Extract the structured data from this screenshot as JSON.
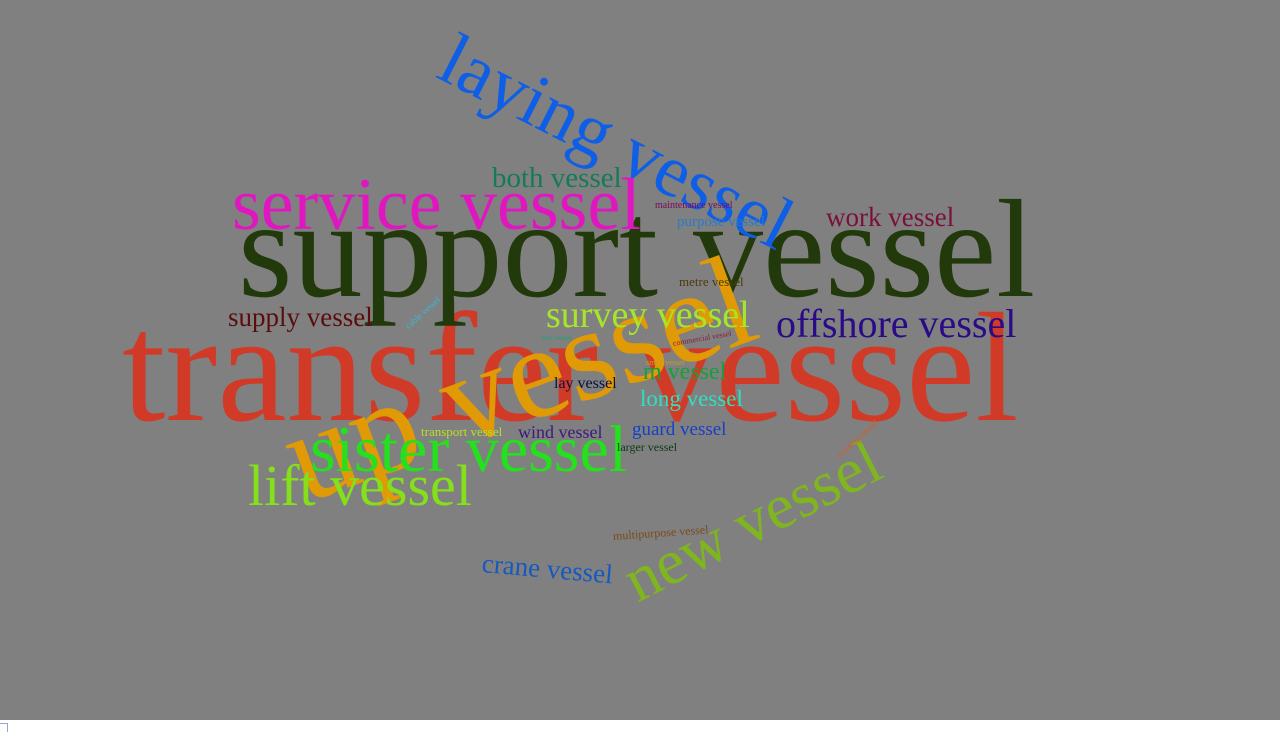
{
  "words": [
    {
      "text": "transfer vessel",
      "color": "#d13a26"
    },
    {
      "text": "support vessel",
      "color": "#223a0b"
    },
    {
      "text": "up vessel",
      "color": "#e09a06"
    },
    {
      "text": "service vessel",
      "color": "#e017c0"
    },
    {
      "text": "laying vessel",
      "color": "#0f5ee6"
    },
    {
      "text": "sister vessel",
      "color": "#25e01c"
    },
    {
      "text": "lift vessel",
      "color": "#83e01a"
    },
    {
      "text": "new vessel",
      "color": "#7fb51f"
    },
    {
      "text": "survey vessel",
      "color": "#a6e62a"
    },
    {
      "text": "offshore vessel",
      "color": "#2a0a86"
    },
    {
      "text": "both vessel",
      "color": "#147a5a"
    },
    {
      "text": "work vessel",
      "color": "#7a0f3a"
    },
    {
      "text": "supply vessel",
      "color": "#5a0d0d"
    },
    {
      "text": "crane vessel",
      "color": "#1559c0"
    },
    {
      "text": "m vessel",
      "color": "#16a03a"
    },
    {
      "text": "long vessel",
      "color": "#2fe0c0"
    },
    {
      "text": "guard vessel",
      "color": "#1440c8"
    },
    {
      "text": "lay vessel",
      "color": "#0a0f3c"
    },
    {
      "text": "wind vessel",
      "color": "#3a1a7a"
    },
    {
      "text": "transport vessel",
      "color": "#b8e02a"
    },
    {
      "text": "purpose vessel",
      "color": "#2a7ac8"
    },
    {
      "text": "metre vessel",
      "color": "#4a3a0a"
    },
    {
      "text": "larger vessel",
      "color": "#0a3a1a"
    },
    {
      "text": "multipurpose vessel",
      "color": "#7a4a1a"
    },
    {
      "text": "maintenance vessel",
      "color": "#7a0a5a"
    },
    {
      "text": "commercial vessel",
      "color": "#8a1a3a"
    },
    {
      "text": "existing vessel",
      "color": "#d85a2a"
    },
    {
      "text": "cable vessel",
      "color": "#3ab8d8"
    },
    {
      "text": "small vessel",
      "color": "#c8a020"
    },
    {
      "text": "tiny vessel",
      "color": "#1aa070"
    }
  ]
}
